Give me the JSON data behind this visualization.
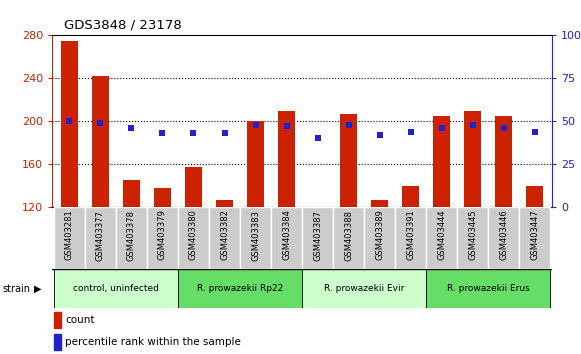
{
  "title": "GDS3848 / 23178",
  "samples": [
    "GSM403281",
    "GSM403377",
    "GSM403378",
    "GSM403379",
    "GSM403380",
    "GSM403382",
    "GSM403383",
    "GSM403384",
    "GSM403387",
    "GSM403388",
    "GSM403389",
    "GSM403391",
    "GSM403444",
    "GSM403445",
    "GSM403446",
    "GSM403447"
  ],
  "counts": [
    275,
    242,
    145,
    138,
    157,
    127,
    200,
    210,
    115,
    207,
    127,
    140,
    205,
    210,
    205,
    140
  ],
  "percentiles": [
    50,
    49,
    46,
    43,
    43,
    43,
    48,
    47,
    40,
    48,
    42,
    44,
    46,
    48,
    46,
    44
  ],
  "ymin": 120,
  "ymax": 280,
  "yticks_left": [
    120,
    160,
    200,
    240,
    280
  ],
  "yticks_right": [
    0,
    25,
    50,
    75,
    100
  ],
  "bar_color": "#cc2200",
  "dot_color": "#2222cc",
  "group_colors": [
    "#ccffcc",
    "#66dd66",
    "#ccffcc",
    "#66dd66"
  ],
  "groups": [
    {
      "label": "control, uninfected",
      "start": 0,
      "end": 4
    },
    {
      "label": "R. prowazekii Rp22",
      "start": 4,
      "end": 8
    },
    {
      "label": "R. prowazekii Evir",
      "start": 8,
      "end": 12
    },
    {
      "label": "R. prowazekii Erus",
      "start": 12,
      "end": 16
    }
  ],
  "tick_box_color": "#cccccc",
  "tick_box_edge": "#ffffff",
  "bg_color": "#ffffff"
}
